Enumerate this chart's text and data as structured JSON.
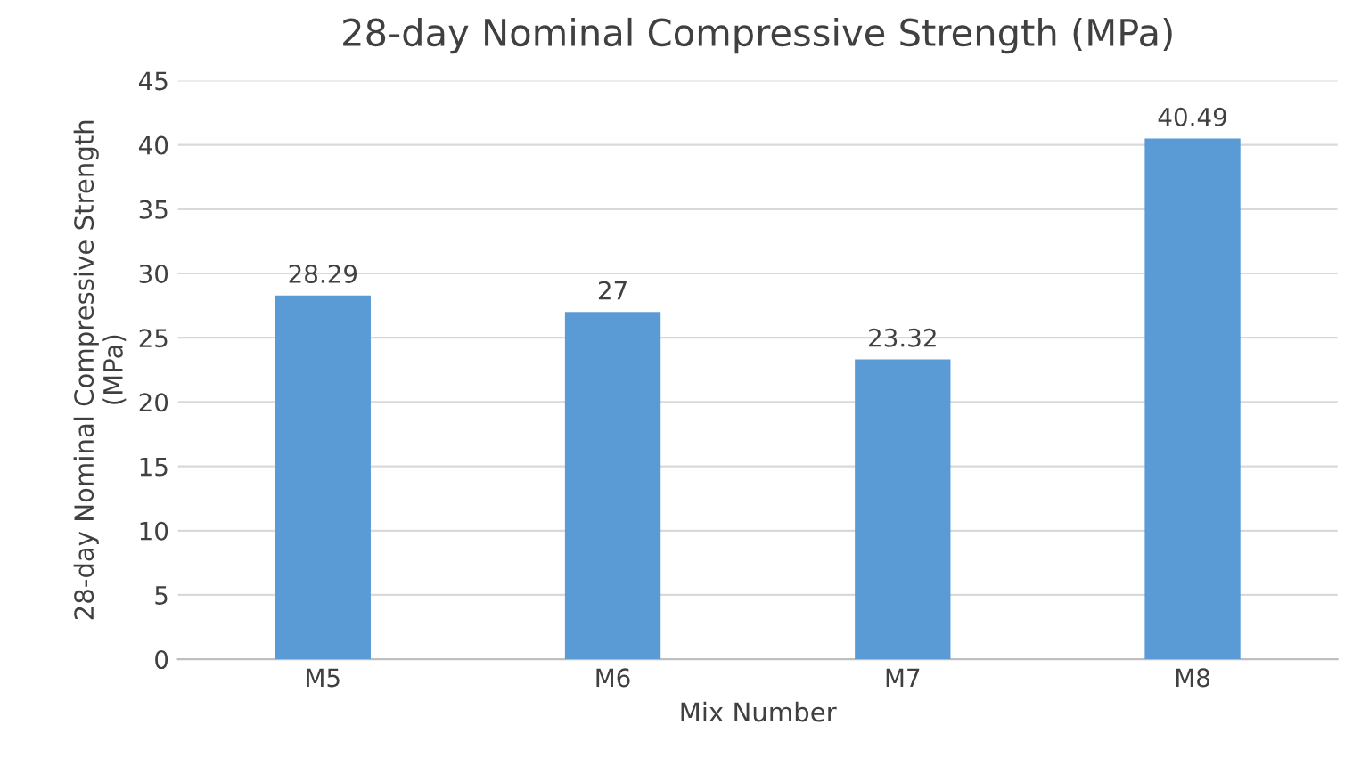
{
  "chart_data": {
    "type": "bar",
    "title": "28-day Nominal Compressive Strength (MPa)",
    "xlabel": "Mix Number",
    "ylabel": "28-day Nominal Compressive Strength\n(MPa)",
    "categories": [
      "M5",
      "M6",
      "M7",
      "M8"
    ],
    "values": [
      28.29,
      27,
      23.32,
      40.49
    ],
    "color": "#5b9bd5",
    "ylim": [
      0,
      45
    ],
    "yticks": [
      0,
      5,
      10,
      15,
      20,
      25,
      30,
      35,
      40,
      45
    ],
    "grid": "y",
    "data_labels": true
  }
}
